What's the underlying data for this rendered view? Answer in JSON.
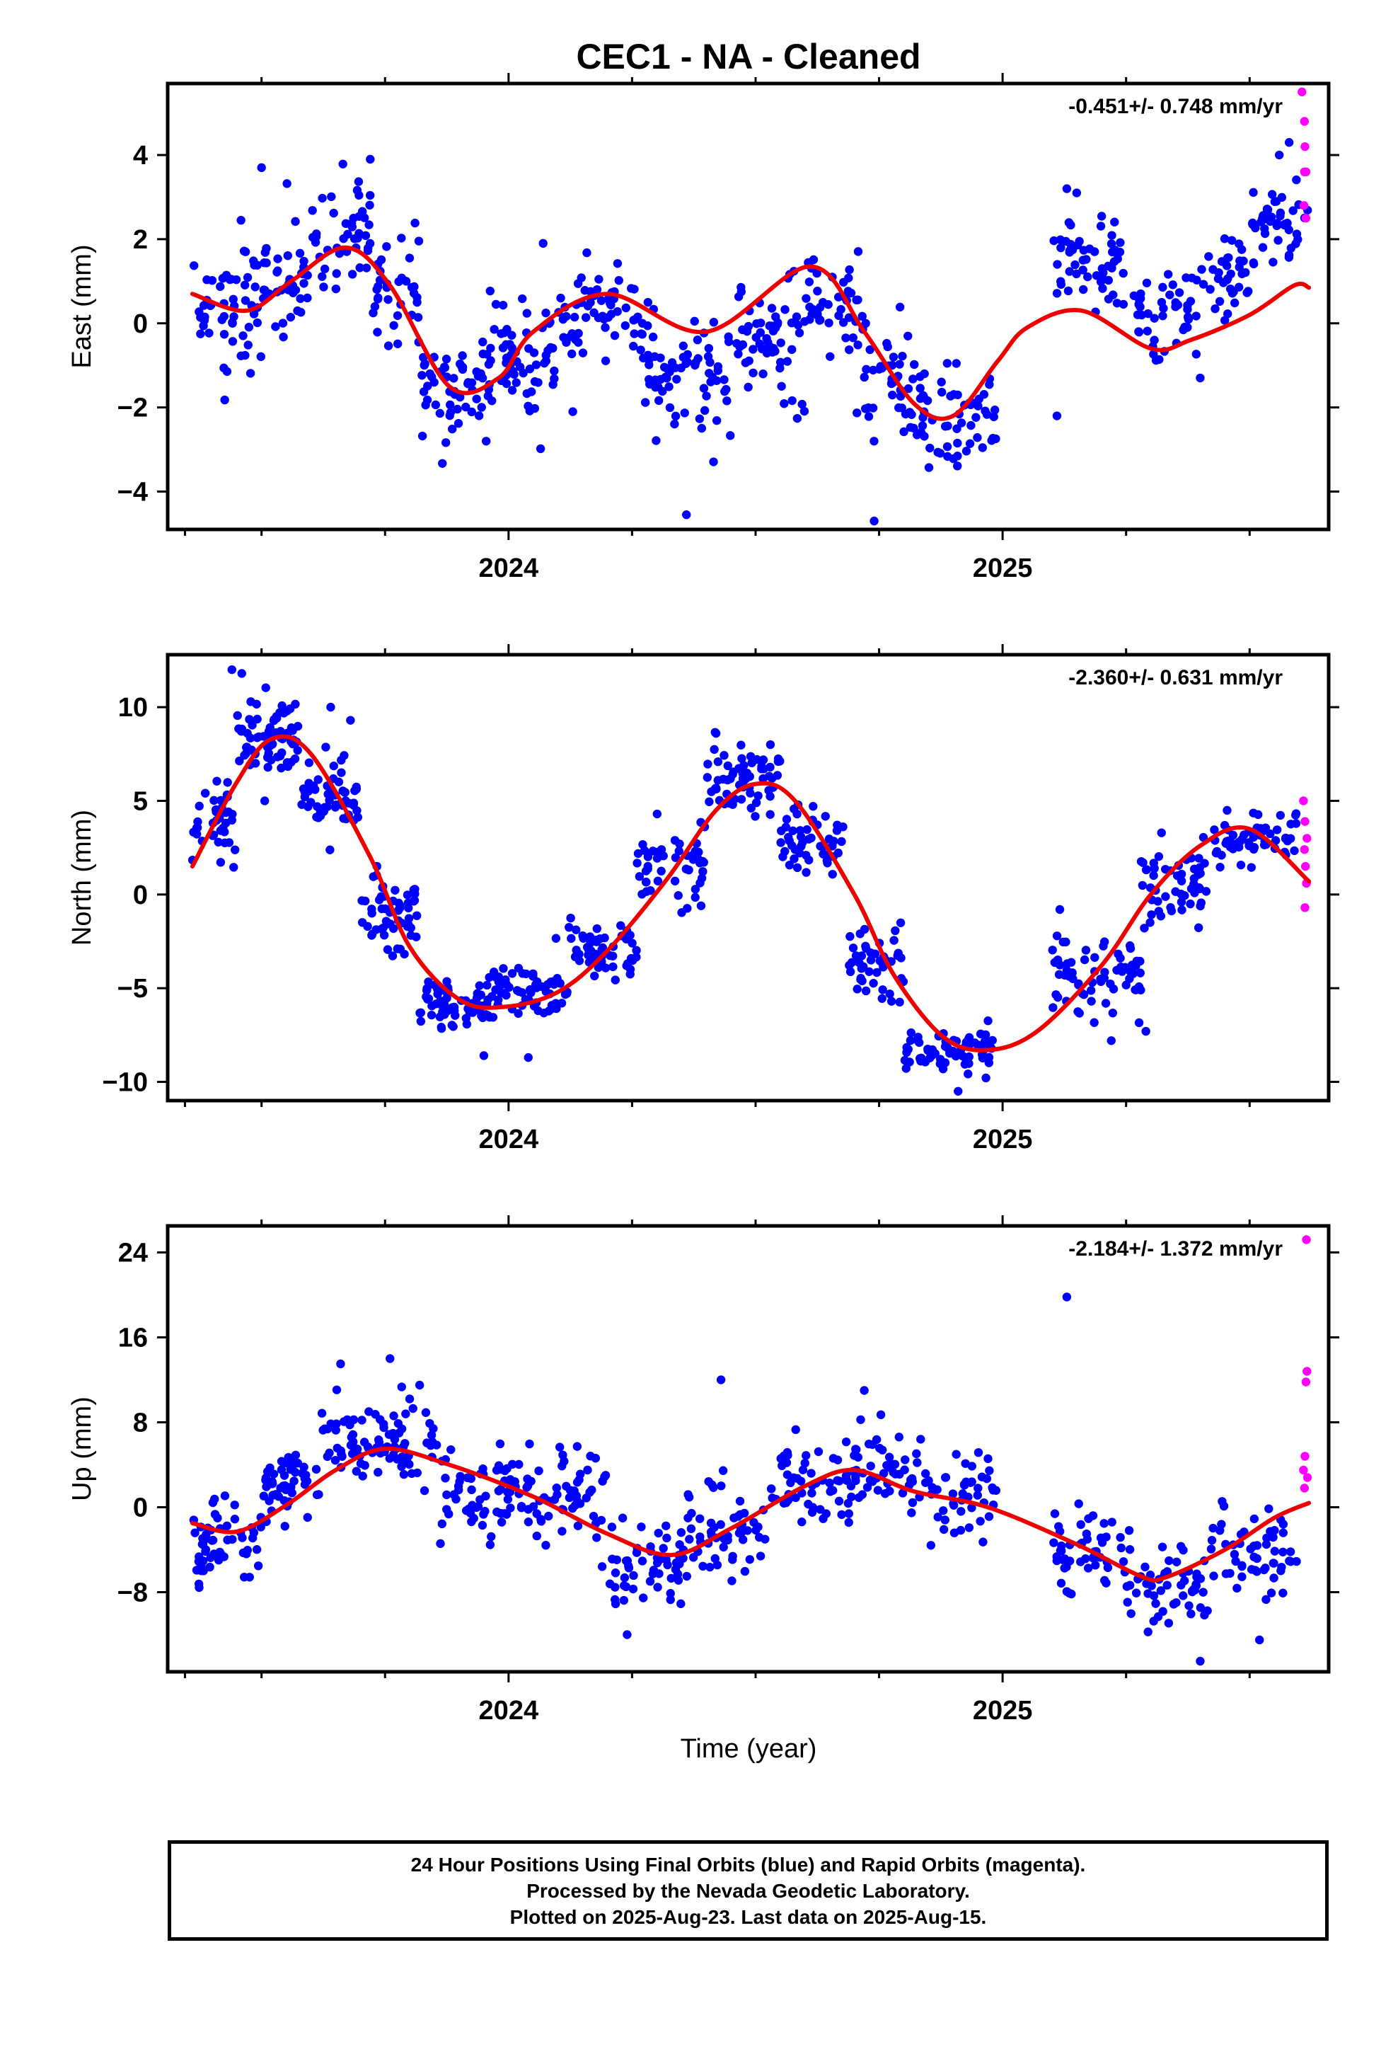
{
  "title": "CEC1  - NA - Cleaned",
  "x_axis_label": "Time (year)",
  "colors": {
    "final_orbits": "#0000ff",
    "rapid_orbits": "#ff00ff",
    "model_fit": "#ee0000",
    "axes": "#000000"
  },
  "footer": {
    "line1": "24 Hour Positions Using Final Orbits (blue) and Rapid Orbits (magenta).",
    "line2": "Processed by the Nevada Geodetic Laboratory.",
    "line3": "Plotted on 2025-Aug-23. Last data on 2025-Aug-15."
  },
  "chart_data": [
    {
      "type": "scatter",
      "ylabel": "East (mm)",
      "rate_label": "-0.451+/- 0.748 mm/yr",
      "xlim": [
        2023.31,
        2025.66
      ],
      "ylim": [
        -4.9,
        5.7
      ],
      "x_ticks": [
        "2024",
        "2025"
      ],
      "y_ticks": [
        -4,
        -2,
        0,
        2,
        4
      ],
      "fit_points": [
        [
          2023.36,
          0.7
        ],
        [
          2023.47,
          0.3
        ],
        [
          2023.56,
          1.0
        ],
        [
          2023.67,
          1.8
        ],
        [
          2023.76,
          0.9
        ],
        [
          2023.88,
          -1.5
        ],
        [
          2023.98,
          -1.3
        ],
        [
          2024.05,
          -0.2
        ],
        [
          2024.2,
          0.7
        ],
        [
          2024.4,
          -0.2
        ],
        [
          2024.61,
          1.35
        ],
        [
          2024.72,
          -0.2
        ],
        [
          2024.82,
          -1.9
        ],
        [
          2024.9,
          -2.2
        ],
        [
          2024.99,
          -0.9
        ],
        [
          2025.05,
          -0.1
        ],
        [
          2025.16,
          0.3
        ],
        [
          2025.3,
          -0.6
        ],
        [
          2025.38,
          -0.4
        ],
        [
          2025.5,
          0.2
        ],
        [
          2025.59,
          0.9
        ],
        [
          2025.62,
          0.85
        ]
      ],
      "clusters": [
        [
          2023.36,
          2023.5,
          0.3,
          1.4,
          55
        ],
        [
          2023.5,
          2023.6,
          0.9,
          1.5,
          40
        ],
        [
          2023.6,
          2023.72,
          2.0,
          1.3,
          45
        ],
        [
          2023.72,
          2023.82,
          0.8,
          1.3,
          35
        ],
        [
          2023.82,
          2023.97,
          -1.5,
          1.2,
          65
        ],
        [
          2023.97,
          2024.1,
          -0.8,
          1.3,
          55
        ],
        [
          2024.1,
          2024.26,
          0.2,
          1.2,
          55
        ],
        [
          2024.26,
          2024.45,
          -1.2,
          1.3,
          75
        ],
        [
          2024.45,
          2024.6,
          -0.4,
          1.3,
          60
        ],
        [
          2024.6,
          2024.72,
          0.4,
          1.2,
          45
        ],
        [
          2024.72,
          2024.82,
          -1.5,
          1.3,
          40
        ],
        [
          2024.82,
          2024.99,
          -2.2,
          1.1,
          60
        ],
        [
          2025.1,
          2025.26,
          1.3,
          1.2,
          55
        ],
        [
          2025.26,
          2025.4,
          0.2,
          1.1,
          45
        ],
        [
          2025.4,
          2025.5,
          1.0,
          1.0,
          35
        ],
        [
          2025.5,
          2025.62,
          2.3,
          1.1,
          45
        ]
      ],
      "outliers": [
        [
          2023.5,
          3.7
        ],
        [
          2023.72,
          3.9
        ],
        [
          2024.07,
          1.9
        ],
        [
          2024.13,
          -2.1
        ],
        [
          2024.36,
          -4.55
        ],
        [
          2024.74,
          -4.7
        ],
        [
          2025.11,
          -2.2
        ],
        [
          2025.13,
          3.2
        ],
        [
          2025.15,
          3.1
        ],
        [
          2025.4,
          -1.3
        ],
        [
          2025.56,
          4.0
        ],
        [
          2025.58,
          4.3
        ]
      ],
      "rapid_points": [
        [
          2025.606,
          5.5
        ],
        [
          2025.611,
          4.8
        ],
        [
          2025.612,
          4.2
        ],
        [
          2025.611,
          3.6
        ],
        [
          2025.614,
          3.6
        ],
        [
          2025.61,
          2.8
        ],
        [
          2025.614,
          2.5
        ]
      ]
    },
    {
      "type": "scatter",
      "ylabel": "North (mm)",
      "rate_label": "-2.360+/- 0.631 mm/yr",
      "xlim": [
        2023.31,
        2025.66
      ],
      "ylim": [
        -11.0,
        12.8
      ],
      "x_ticks": [
        "2024",
        "2025"
      ],
      "y_ticks": [
        -10,
        -5,
        0,
        5,
        10
      ],
      "fit_points": [
        [
          2023.36,
          1.5
        ],
        [
          2023.45,
          6.0
        ],
        [
          2023.52,
          8.3
        ],
        [
          2023.6,
          7.5
        ],
        [
          2023.72,
          2.0
        ],
        [
          2023.8,
          -2.8
        ],
        [
          2023.9,
          -5.6
        ],
        [
          2023.99,
          -6.0
        ],
        [
          2024.1,
          -5.2
        ],
        [
          2024.2,
          -3.0
        ],
        [
          2024.32,
          0.8
        ],
        [
          2024.42,
          4.5
        ],
        [
          2024.5,
          5.9
        ],
        [
          2024.58,
          5.0
        ],
        [
          2024.7,
          0.0
        ],
        [
          2024.78,
          -4.3
        ],
        [
          2024.88,
          -7.6
        ],
        [
          2024.97,
          -8.3
        ],
        [
          2025.07,
          -7.3
        ],
        [
          2025.2,
          -3.8
        ],
        [
          2025.3,
          0.0
        ],
        [
          2025.4,
          2.6
        ],
        [
          2025.5,
          3.5
        ],
        [
          2025.62,
          0.7
        ]
      ],
      "clusters": [
        [
          2023.36,
          2023.45,
          3.8,
          1.8,
          40
        ],
        [
          2023.45,
          2023.58,
          8.5,
          1.8,
          70
        ],
        [
          2023.58,
          2023.7,
          5.2,
          2.0,
          55
        ],
        [
          2023.7,
          2023.82,
          -1.0,
          2.0,
          55
        ],
        [
          2023.82,
          2023.97,
          -5.8,
          1.3,
          65
        ],
        [
          2023.97,
          2024.12,
          -5.0,
          1.3,
          60
        ],
        [
          2024.12,
          2024.26,
          -3.0,
          1.5,
          50
        ],
        [
          2024.26,
          2024.4,
          1.5,
          2.0,
          50
        ],
        [
          2024.4,
          2024.55,
          6.0,
          1.6,
          65
        ],
        [
          2024.55,
          2024.68,
          3.0,
          2.0,
          50
        ],
        [
          2024.68,
          2024.8,
          -3.5,
          2.0,
          45
        ],
        [
          2024.8,
          2024.98,
          -8.3,
          1.0,
          70
        ],
        [
          2025.1,
          2025.28,
          -4.5,
          1.8,
          70
        ],
        [
          2025.28,
          2025.42,
          0.8,
          2.0,
          55
        ],
        [
          2025.42,
          2025.6,
          3.0,
          1.4,
          60
        ]
      ],
      "outliers": [
        [
          2023.44,
          12.0
        ],
        [
          2023.46,
          11.8
        ],
        [
          2023.53,
          9.5
        ],
        [
          2023.64,
          10.0
        ],
        [
          2023.68,
          9.3
        ],
        [
          2023.95,
          -8.6
        ],
        [
          2024.04,
          -8.7
        ],
        [
          2024.15,
          -2.2
        ],
        [
          2024.42,
          8.6
        ],
        [
          2024.53,
          8.0
        ],
        [
          2024.91,
          -10.5
        ],
        [
          2025.22,
          -7.8
        ],
        [
          2025.29,
          -7.3
        ],
        [
          2025.38,
          -0.5
        ]
      ],
      "rapid_points": [
        [
          2025.609,
          5.0
        ],
        [
          2025.612,
          3.9
        ],
        [
          2025.616,
          3.0
        ],
        [
          2025.611,
          2.4
        ],
        [
          2025.613,
          1.5
        ],
        [
          2025.615,
          0.6
        ],
        [
          2025.612,
          -0.7
        ]
      ]
    },
    {
      "type": "scatter",
      "ylabel": "Up (mm)",
      "rate_label": "-2.184+/- 1.372 mm/yr",
      "xlim": [
        2023.31,
        2025.66
      ],
      "ylim": [
        -15.5,
        26.5
      ],
      "x_ticks": [
        "2024",
        "2025"
      ],
      "y_ticks": [
        -8,
        0,
        8,
        16,
        24
      ],
      "fit_points": [
        [
          2023.36,
          -1.5
        ],
        [
          2023.45,
          -2.3
        ],
        [
          2023.55,
          0.2
        ],
        [
          2023.65,
          3.5
        ],
        [
          2023.75,
          5.5
        ],
        [
          2023.88,
          4.0
        ],
        [
          2024.05,
          1.0
        ],
        [
          2024.2,
          -2.5
        ],
        [
          2024.33,
          -4.5
        ],
        [
          2024.45,
          -2.0
        ],
        [
          2024.6,
          2.0
        ],
        [
          2024.7,
          3.5
        ],
        [
          2024.82,
          1.5
        ],
        [
          2024.97,
          0.0
        ],
        [
          2025.15,
          -3.5
        ],
        [
          2025.28,
          -6.5
        ],
        [
          2025.33,
          -6.6
        ],
        [
          2025.45,
          -4.0
        ],
        [
          2025.55,
          -1.0
        ],
        [
          2025.62,
          0.4
        ]
      ],
      "clusters": [
        [
          2023.36,
          2023.5,
          -3.5,
          3.2,
          55
        ],
        [
          2023.5,
          2023.62,
          2.5,
          3.0,
          50
        ],
        [
          2023.62,
          2023.74,
          6.5,
          3.0,
          45
        ],
        [
          2023.74,
          2023.86,
          6.0,
          3.5,
          45
        ],
        [
          2023.86,
          2024.02,
          1.0,
          4.0,
          60
        ],
        [
          2024.02,
          2024.2,
          1.0,
          4.0,
          60
        ],
        [
          2024.2,
          2024.36,
          -5.0,
          3.5,
          55
        ],
        [
          2024.36,
          2024.52,
          -2.0,
          4.0,
          55
        ],
        [
          2024.52,
          2024.7,
          2.5,
          4.0,
          60
        ],
        [
          2024.7,
          2024.85,
          3.5,
          3.2,
          50
        ],
        [
          2024.85,
          2024.99,
          1.0,
          3.5,
          45
        ],
        [
          2025.1,
          2025.25,
          -4.5,
          4.0,
          50
        ],
        [
          2025.25,
          2025.42,
          -8.0,
          3.5,
          55
        ],
        [
          2025.42,
          2025.6,
          -4.0,
          3.5,
          55
        ]
      ],
      "outliers": [
        [
          2023.66,
          13.5
        ],
        [
          2023.76,
          14.0
        ],
        [
          2023.82,
          11.5
        ],
        [
          2024.24,
          -12.0
        ],
        [
          2024.43,
          12.0
        ],
        [
          2024.72,
          11.0
        ],
        [
          2025.13,
          19.8
        ],
        [
          2025.4,
          -14.5
        ],
        [
          2025.52,
          -12.5
        ]
      ],
      "rapid_points": [
        [
          2025.615,
          25.2
        ],
        [
          2025.616,
          12.8
        ],
        [
          2025.614,
          11.8
        ],
        [
          2025.612,
          4.8
        ],
        [
          2025.609,
          3.5
        ],
        [
          2025.617,
          2.8
        ],
        [
          2025.611,
          1.8
        ]
      ]
    }
  ]
}
